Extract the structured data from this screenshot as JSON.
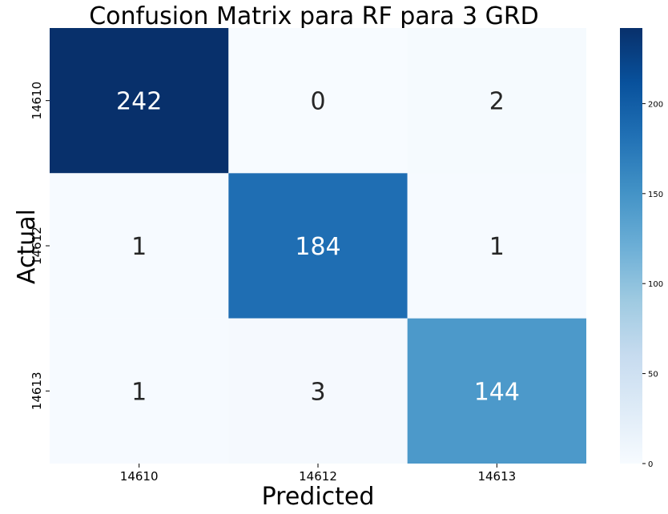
{
  "chart_data": {
    "type": "heatmap",
    "title": "Confusion Matrix para RF para 3 GRD",
    "xlabel": "Predicted",
    "ylabel": "Actual",
    "x_categories": [
      "14610",
      "14612",
      "14613"
    ],
    "y_categories": [
      "14610",
      "14612",
      "14613"
    ],
    "values": [
      [
        242,
        0,
        2
      ],
      [
        1,
        184,
        1
      ],
      [
        1,
        3,
        144
      ]
    ],
    "colormap": "Blues",
    "colorbar": {
      "min": 0,
      "max": 242,
      "ticks": [
        0,
        50,
        100,
        150,
        200
      ],
      "tick_labels": [
        "0",
        "50",
        "100",
        "150",
        "200"
      ]
    },
    "colors": {
      "low": "#f7fbff",
      "high": "#08306b",
      "text_dark": "#262626",
      "text_light": "#ffffff"
    }
  }
}
